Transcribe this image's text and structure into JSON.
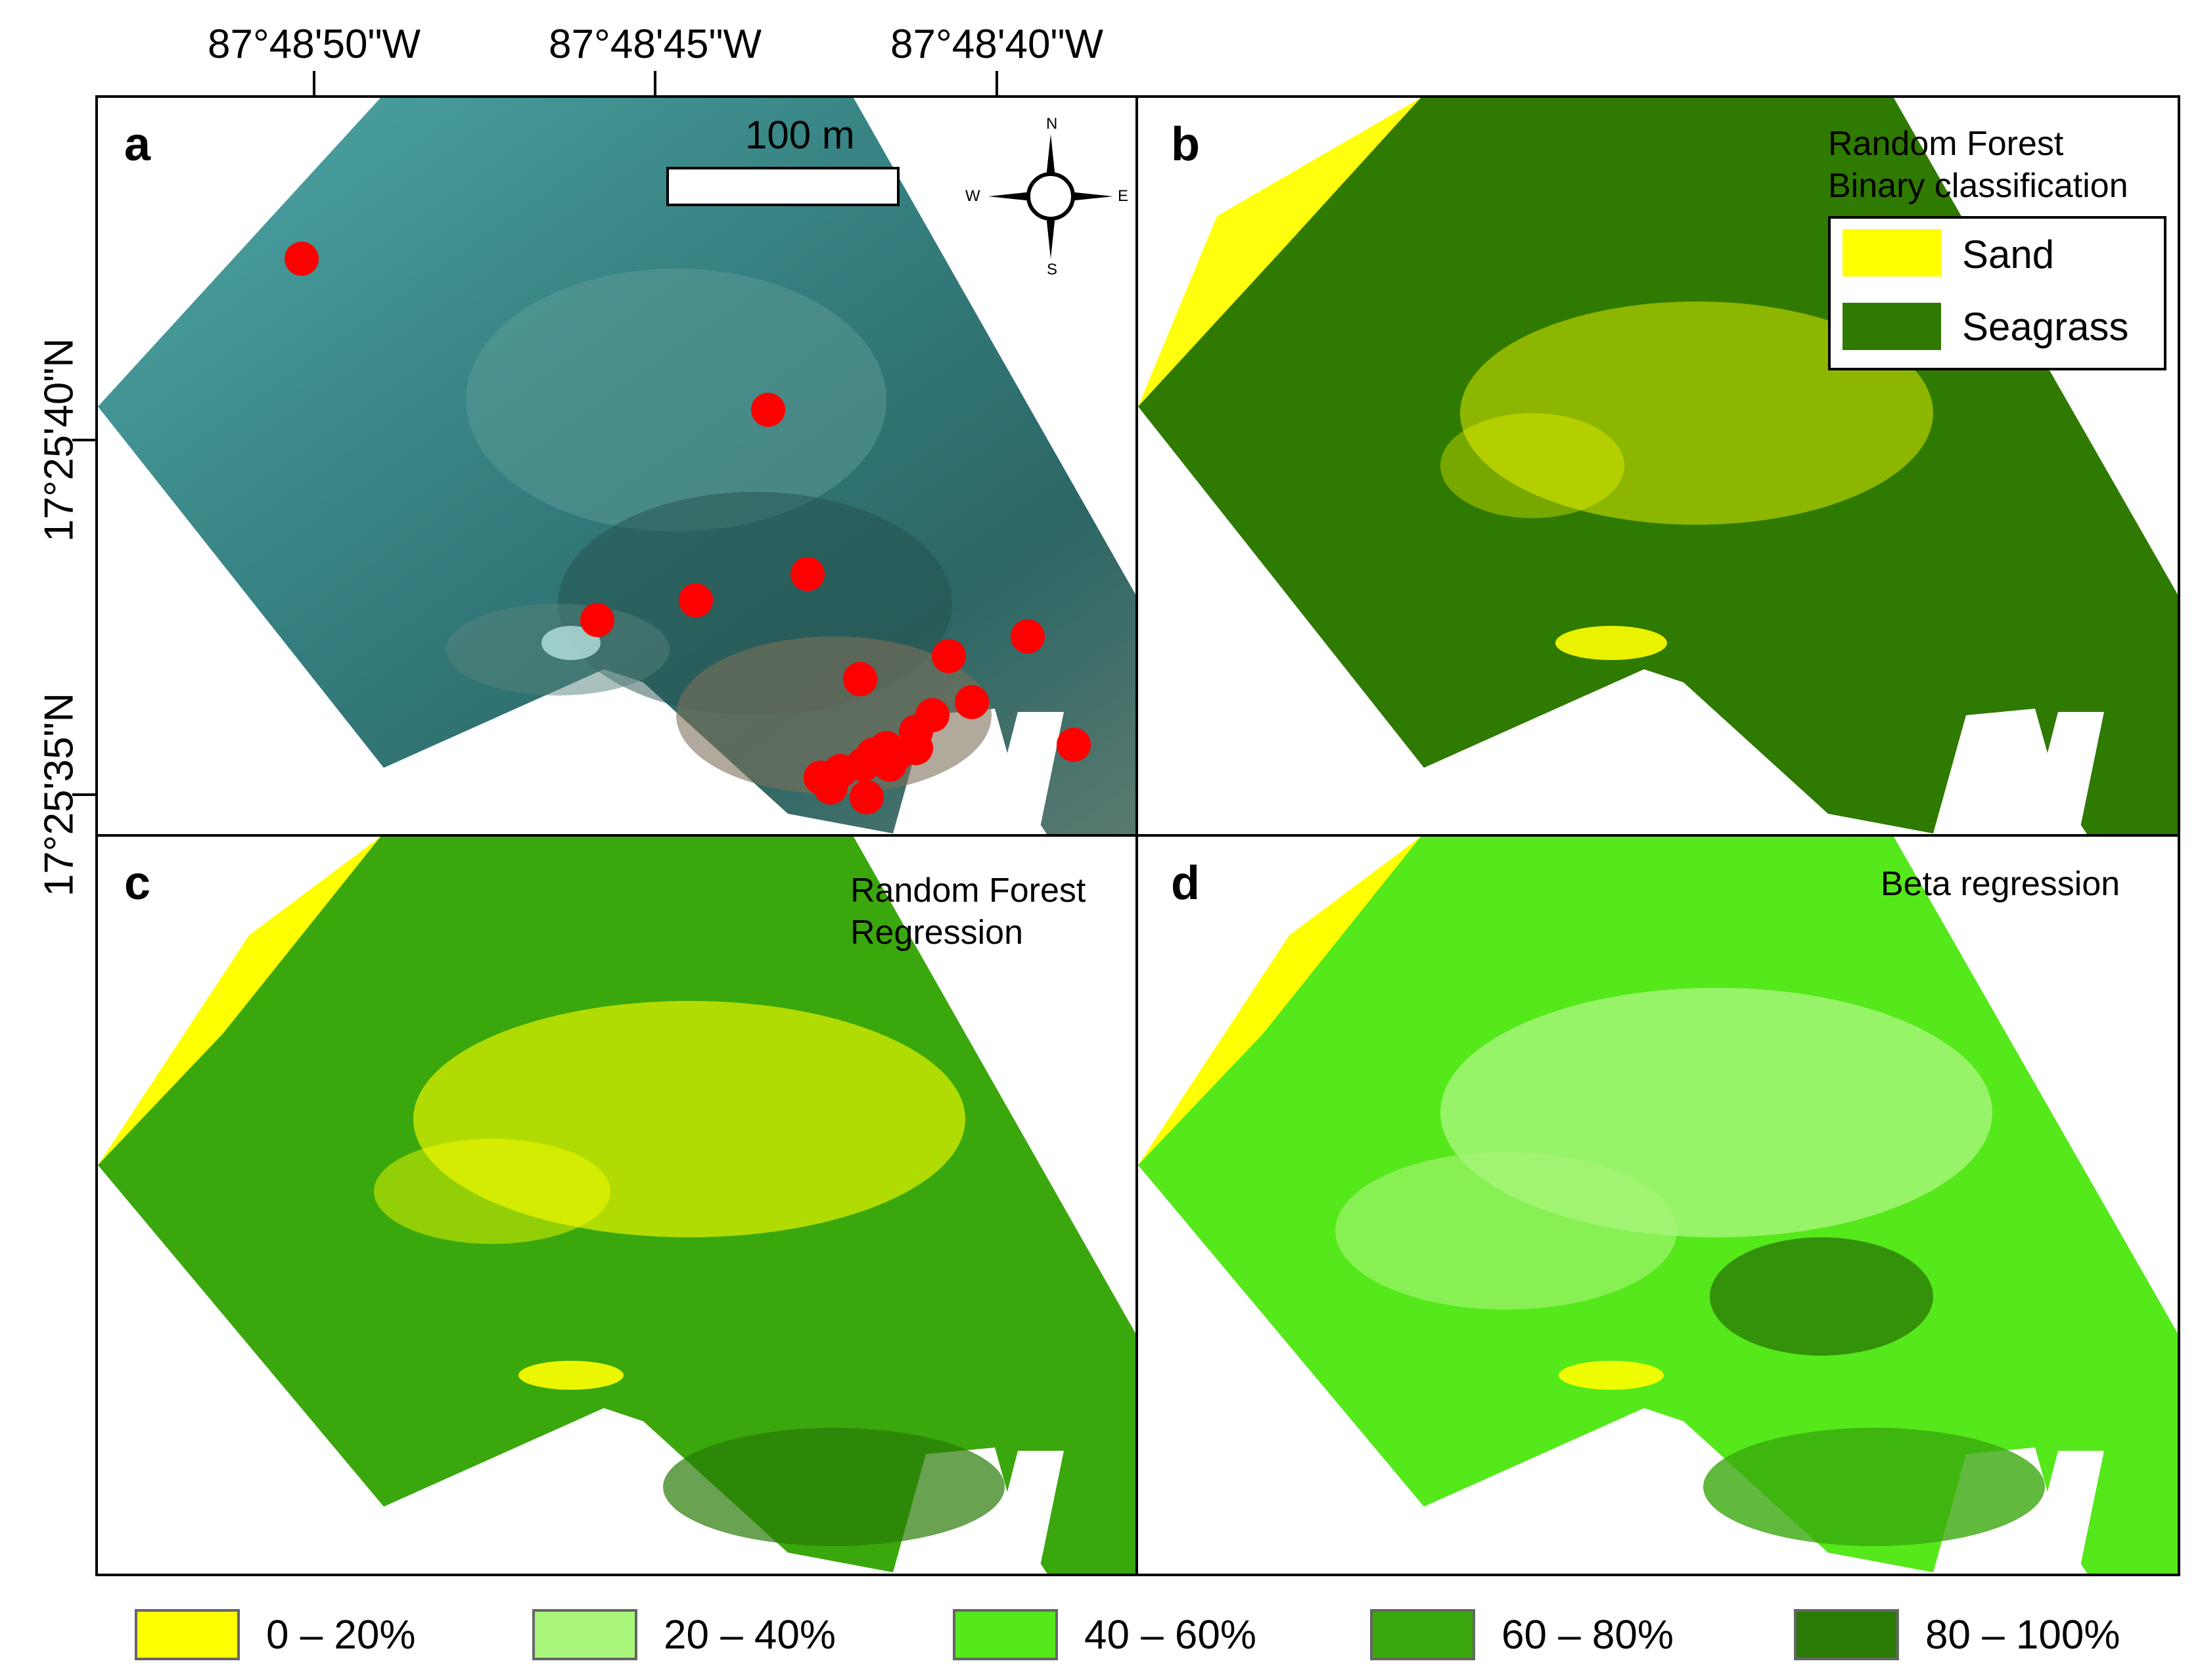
{
  "figure": {
    "longitude_labels": [
      "87°48'50\"W",
      "87°48'45\"W",
      "87°48'40\"W"
    ],
    "latitude_labels": [
      "17°25'40\"N",
      "17°25'35\"N"
    ]
  },
  "panels": {
    "a": {
      "letter": "a",
      "scale_label": "100 m",
      "compass": {
        "n": "N",
        "s": "S",
        "e": "E",
        "w": "W"
      },
      "sample_point_count": 22
    },
    "b": {
      "letter": "b",
      "title": "Random Forest\nBinary classification",
      "legend": [
        {
          "label": "Sand",
          "color": "#ffff00"
        },
        {
          "label": "Seagrass",
          "color": "#2f7a00"
        }
      ]
    },
    "c": {
      "letter": "c",
      "title": "Random Forest\nRegression"
    },
    "d": {
      "letter": "d",
      "title": "Beta regression"
    }
  },
  "cover_legend": [
    {
      "label": "0 – 20%",
      "color": "#ffff00"
    },
    {
      "label": "20 – 40%",
      "color": "#a8f57a"
    },
    {
      "label": "40 – 60%",
      "color": "#55e81a"
    },
    {
      "label": "60 – 80%",
      "color": "#3aa80c"
    },
    {
      "label": "80 – 100%",
      "color": "#2a7a06"
    }
  ],
  "colors": {
    "water_light": "#3f9e9a",
    "water_dark": "#2b6460",
    "sample_point": "#ff0000"
  }
}
